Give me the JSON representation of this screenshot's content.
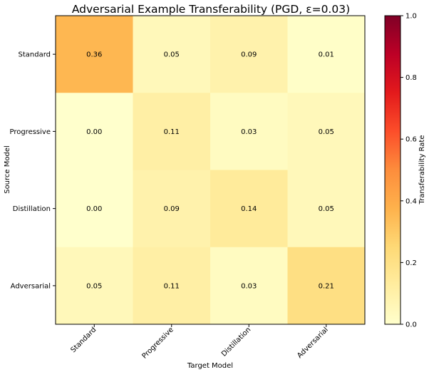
{
  "chart_data": {
    "type": "heatmap",
    "title": "Adversarial Example Transferability (PGD, ε=0.03)",
    "xlabel": "Target Model",
    "ylabel": "Source Model",
    "x_categories": [
      "Standard",
      "Progressive",
      "Distillation",
      "Adversarial"
    ],
    "y_categories": [
      "Standard",
      "Progressive",
      "Distillation",
      "Adversarial"
    ],
    "values": [
      [
        0.36,
        0.05,
        0.09,
        0.01
      ],
      [
        0.0,
        0.11,
        0.03,
        0.05
      ],
      [
        0.0,
        0.09,
        0.14,
        0.05
      ],
      [
        0.05,
        0.11,
        0.03,
        0.21
      ]
    ],
    "value_labels": [
      [
        "0.36",
        "0.05",
        "0.09",
        "0.01"
      ],
      [
        "0.00",
        "0.11",
        "0.03",
        "0.05"
      ],
      [
        "0.00",
        "0.09",
        "0.14",
        "0.05"
      ],
      [
        "0.05",
        "0.11",
        "0.03",
        "0.21"
      ]
    ],
    "colormap": "YlOrRd",
    "vmin": 0.0,
    "vmax": 1.0,
    "colorbar": {
      "label": "Transferability Rate",
      "ticks": [
        0.0,
        0.2,
        0.4,
        0.6,
        0.8,
        1.0
      ],
      "tick_labels": [
        "0.0",
        "0.2",
        "0.4",
        "0.6",
        "0.8",
        "1.0"
      ]
    },
    "colormap_stops": [
      "#ffffcc",
      "#ffeda0",
      "#fed976",
      "#feb24c",
      "#fd8d3c",
      "#fc4e2a",
      "#e31a1c",
      "#bd0026",
      "#800026"
    ]
  }
}
